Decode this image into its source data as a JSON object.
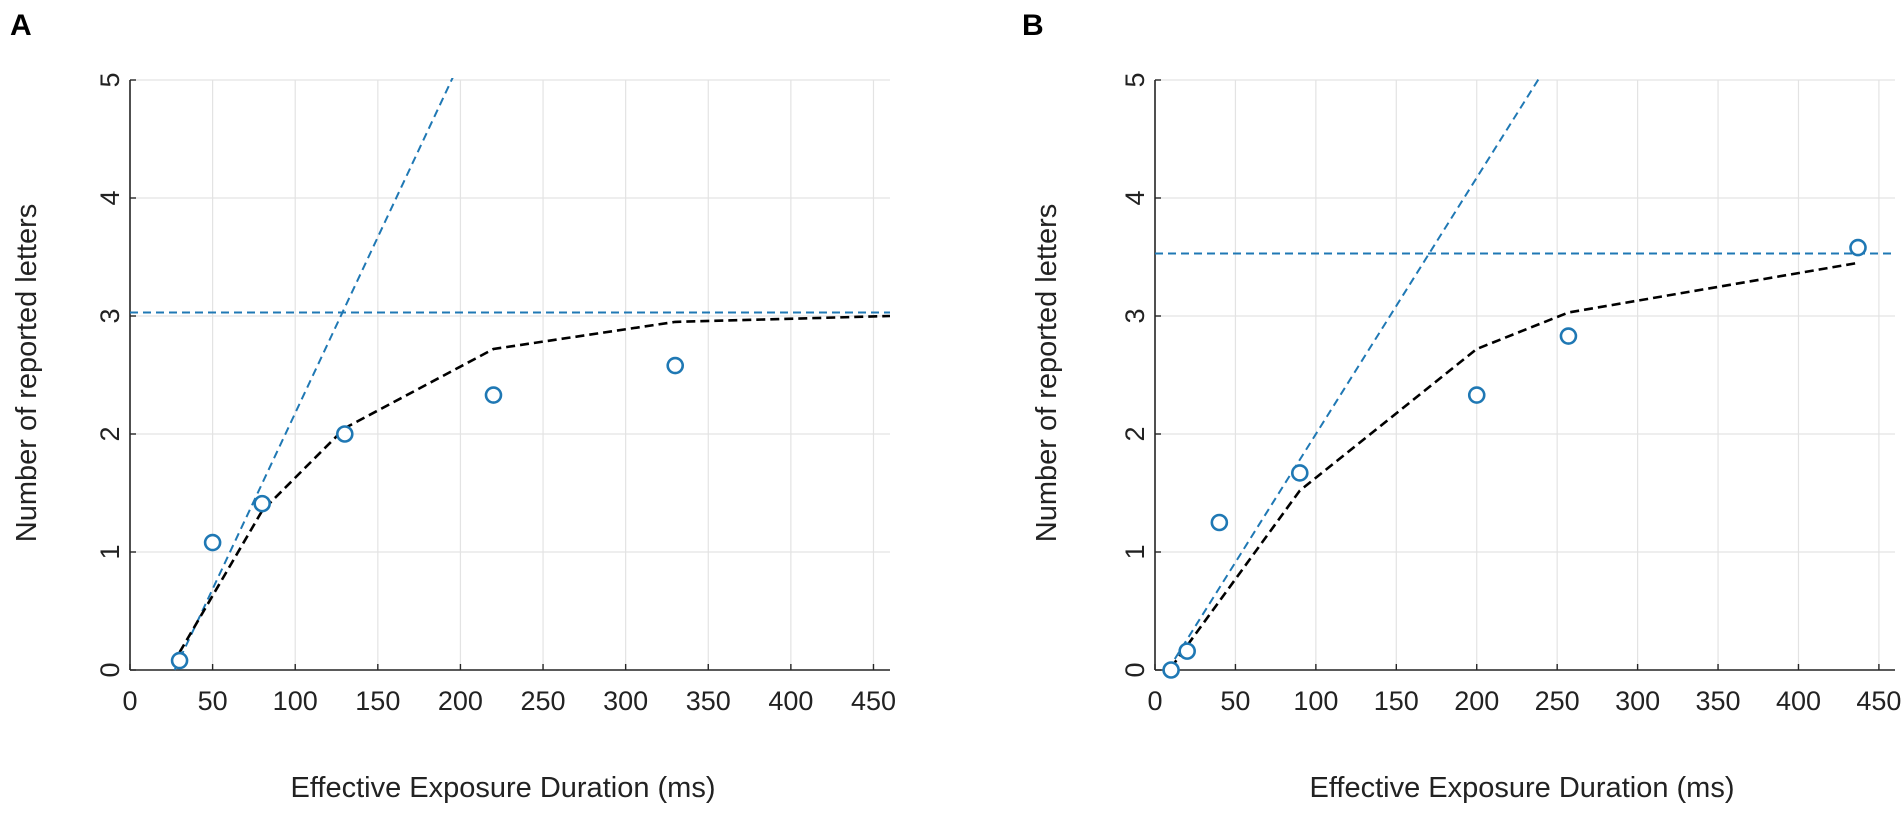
{
  "colors": {
    "ref": "#1f78b4",
    "fit": "#000000",
    "marker": "#1f78b4"
  },
  "chart_data": [
    {
      "panel": "A",
      "type": "scatter",
      "xlabel": "Effective Exposure Duration (ms)",
      "ylabel": "Number of reported letters",
      "xlim": [
        0,
        460
      ],
      "ylim": [
        0,
        5
      ],
      "xticks": [
        0,
        50,
        100,
        150,
        200,
        250,
        300,
        350,
        400,
        450
      ],
      "yticks": [
        0,
        1,
        2,
        3,
        4,
        5
      ],
      "grid": true,
      "points": [
        {
          "x": 30,
          "y": 0.08
        },
        {
          "x": 50,
          "y": 1.08
        },
        {
          "x": 80,
          "y": 1.41
        },
        {
          "x": 130,
          "y": 2.0
        },
        {
          "x": 220,
          "y": 2.33
        },
        {
          "x": 330,
          "y": 2.58
        }
      ],
      "fit_line": [
        {
          "x": 30,
          "y": 0.15
        },
        {
          "x": 80,
          "y": 1.35
        },
        {
          "x": 130,
          "y": 2.05
        },
        {
          "x": 220,
          "y": 2.72
        },
        {
          "x": 330,
          "y": 2.95
        },
        {
          "x": 460,
          "y": 3.0
        }
      ],
      "slope_line": [
        {
          "x": 27,
          "y": 0.0
        },
        {
          "x": 198,
          "y": 5.1
        }
      ],
      "asymptote": 3.03
    },
    {
      "panel": "B",
      "type": "scatter",
      "xlabel": "Effective Exposure Duration (ms)",
      "ylabel": "Number of reported letters",
      "xlim": [
        0,
        460
      ],
      "ylim": [
        0,
        5
      ],
      "xticks": [
        0,
        50,
        100,
        150,
        200,
        250,
        300,
        350,
        400,
        450
      ],
      "yticks": [
        0,
        1,
        2,
        3,
        4,
        5
      ],
      "grid": true,
      "points": [
        {
          "x": 10,
          "y": 0.0
        },
        {
          "x": 20,
          "y": 0.16
        },
        {
          "x": 40,
          "y": 1.25
        },
        {
          "x": 90,
          "y": 1.67
        },
        {
          "x": 200,
          "y": 2.33
        },
        {
          "x": 257,
          "y": 2.83
        },
        {
          "x": 437,
          "y": 3.58
        }
      ],
      "fit_line": [
        {
          "x": 10,
          "y": 0.02
        },
        {
          "x": 90,
          "y": 1.52
        },
        {
          "x": 200,
          "y": 2.72
        },
        {
          "x": 257,
          "y": 3.03
        },
        {
          "x": 437,
          "y": 3.45
        }
      ],
      "slope_line": [
        {
          "x": 8,
          "y": 0.0
        },
        {
          "x": 245,
          "y": 5.15
        }
      ],
      "asymptote": 3.53
    }
  ]
}
